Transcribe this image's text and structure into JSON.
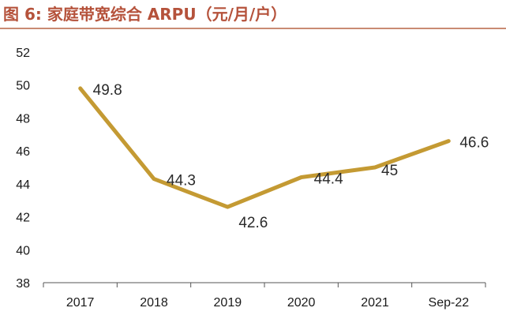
{
  "title": "图 6:  家庭带宽综合 ARPU（元/月/户）",
  "colors": {
    "title": "#b5523b",
    "line": "#c49a33",
    "axis": "#555555"
  },
  "chart_data": {
    "type": "line",
    "title": "图 6:  家庭带宽综合 ARPU（元/月/户）",
    "xlabel": "",
    "ylabel": "",
    "categories": [
      "2017",
      "2018",
      "2019",
      "2020",
      "2021",
      "Sep-22"
    ],
    "series": [
      {
        "name": "家庭带宽综合 ARPU",
        "values": [
          49.8,
          44.3,
          42.6,
          44.4,
          45,
          46.6
        ]
      }
    ],
    "data_labels": [
      "49.8",
      "44.3",
      "42.6",
      "44.4",
      "45",
      "46.6"
    ],
    "ylim": [
      38,
      52
    ],
    "yticks": [
      "38",
      "40",
      "42",
      "44",
      "46",
      "48",
      "50",
      "52"
    ],
    "grid": false,
    "legend": "none"
  }
}
